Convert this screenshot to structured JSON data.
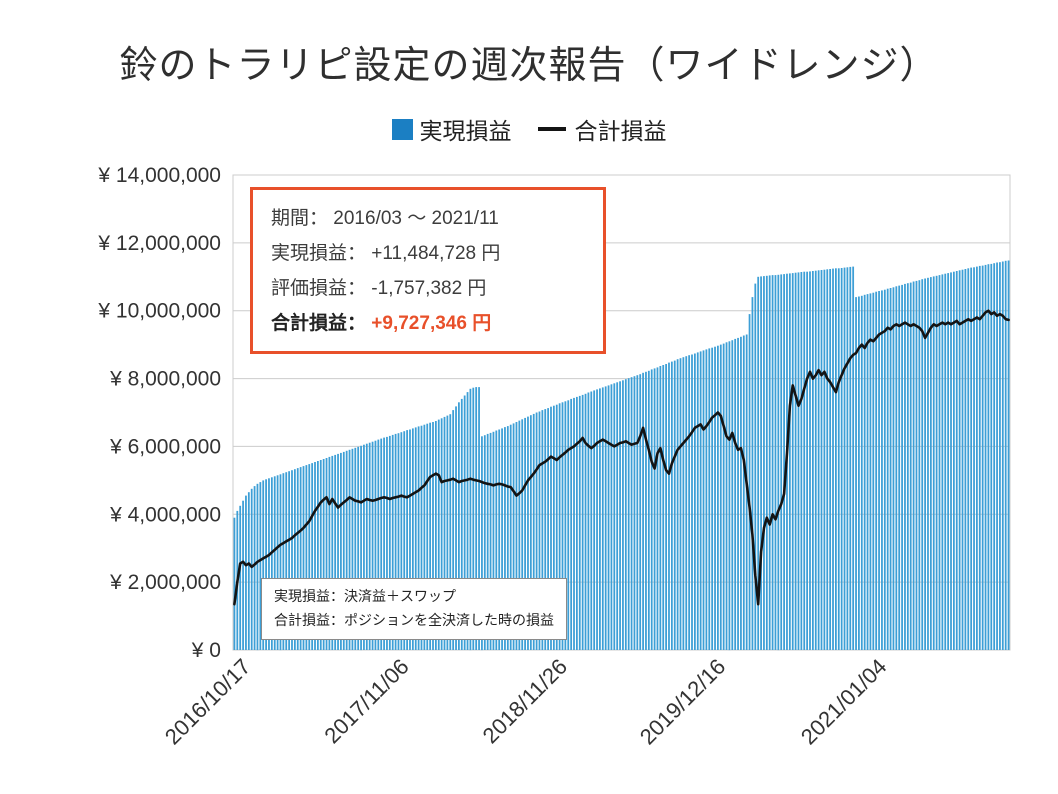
{
  "title": "鈴のトラリピ設定の週次報告（ワイドレンジ）",
  "legend": {
    "realized_label": "実現損益",
    "total_label": "合計損益"
  },
  "info_box": {
    "period_label": "期間：",
    "period_value": "2016/03 ～ 2021/11",
    "realized_label": "実現損益：",
    "realized_value": "+11,484,728 円",
    "valuation_label": "評価損益：",
    "valuation_value": "-1,757,382 円",
    "total_label": "合計損益：",
    "total_value": "+9,727,346 円"
  },
  "note_box": {
    "line1": "実現損益：決済益＋スワップ",
    "line2": "合計損益：ポジションを全決済した時の損益"
  },
  "colors": {
    "bar": "#3d9fd6",
    "legend_swatch": "#1b7fc3",
    "line": "#141414",
    "accent": "#e8502a",
    "grid": "#cccccc",
    "axis": "#aaaaaa",
    "text": "#333333"
  },
  "chart_data": {
    "type": "bar+line",
    "title": "鈴のトラリピ設定の週次報告（ワイドレンジ）",
    "unit": "million JPY",
    "x_unit": "weeks (2016/09 - 2021/11)",
    "ylim": [
      0,
      14
    ],
    "grid": true,
    "legend_position": "top",
    "y_tick_values": [
      14,
      12,
      10,
      8,
      6,
      4,
      2,
      0
    ],
    "y_tick_labels": [
      "¥ 14,000,000",
      "¥ 12,000,000",
      "¥ 10,000,000",
      "¥ 8,000,000",
      "¥ 6,000,000",
      "¥ 4,000,000",
      "¥ 2,000,000",
      "¥ 0"
    ],
    "x_tick_indices": [
      4,
      59,
      114,
      169,
      225
    ],
    "x_tick_labels": [
      "2016/10/17",
      "2017/11/06",
      "2018/11/26",
      "2019/12/16",
      "2021/01/04"
    ],
    "series": [
      {
        "name": "実現損益",
        "type": "bar",
        "values": [
          3.9,
          4.1,
          4.25,
          4.4,
          4.55,
          4.65,
          4.75,
          4.83,
          4.9,
          4.95,
          5.0,
          5.03,
          5.06,
          5.09,
          5.12,
          5.15,
          5.18,
          5.21,
          5.24,
          5.27,
          5.3,
          5.33,
          5.36,
          5.39,
          5.42,
          5.45,
          5.48,
          5.51,
          5.54,
          5.57,
          5.6,
          5.63,
          5.66,
          5.69,
          5.72,
          5.75,
          5.78,
          5.81,
          5.84,
          5.87,
          5.9,
          5.93,
          5.96,
          5.99,
          6.02,
          6.05,
          6.08,
          6.11,
          6.14,
          6.17,
          6.2,
          6.23,
          6.26,
          6.28,
          6.31,
          6.34,
          6.37,
          6.39,
          6.42,
          6.45,
          6.48,
          6.5,
          6.53,
          6.56,
          6.59,
          6.61,
          6.64,
          6.67,
          6.7,
          6.72,
          6.75,
          6.79,
          6.83,
          6.87,
          6.91,
          6.95,
          7.07,
          7.18,
          7.3,
          7.4,
          7.5,
          7.6,
          7.7,
          7.73,
          7.75,
          7.75,
          6.3,
          6.33,
          6.37,
          6.4,
          6.43,
          6.47,
          6.5,
          6.53,
          6.57,
          6.6,
          6.64,
          6.68,
          6.72,
          6.76,
          6.8,
          6.84,
          6.88,
          6.92,
          6.96,
          7.0,
          7.03,
          7.07,
          7.1,
          7.13,
          7.17,
          7.2,
          7.23,
          7.27,
          7.3,
          7.33,
          7.36,
          7.4,
          7.43,
          7.46,
          7.49,
          7.52,
          7.55,
          7.59,
          7.62,
          7.65,
          7.68,
          7.71,
          7.74,
          7.77,
          7.8,
          7.83,
          7.86,
          7.89,
          7.92,
          7.95,
          7.98,
          8.01,
          8.04,
          8.07,
          8.1,
          8.13,
          8.17,
          8.2,
          8.23,
          8.27,
          8.3,
          8.33,
          8.37,
          8.4,
          8.43,
          8.47,
          8.5,
          8.53,
          8.57,
          8.6,
          8.63,
          8.66,
          8.69,
          8.71,
          8.74,
          8.77,
          8.8,
          8.83,
          8.86,
          8.89,
          8.91,
          8.94,
          8.97,
          9.0,
          9.03,
          9.07,
          9.1,
          9.13,
          9.17,
          9.2,
          9.23,
          9.27,
          9.3,
          9.9,
          10.4,
          10.8,
          11.0,
          11.01,
          11.02,
          11.03,
          11.04,
          11.05,
          11.05,
          11.06,
          11.07,
          11.08,
          11.09,
          11.1,
          11.11,
          11.12,
          11.13,
          11.14,
          11.15,
          11.15,
          11.16,
          11.17,
          11.18,
          11.19,
          11.2,
          11.21,
          11.22,
          11.23,
          11.24,
          11.25,
          11.25,
          11.26,
          11.27,
          11.28,
          11.29,
          11.3,
          10.4,
          10.42,
          10.44,
          10.47,
          10.49,
          10.51,
          10.53,
          10.56,
          10.58,
          10.6,
          10.62,
          10.65,
          10.67,
          10.69,
          10.72,
          10.74,
          10.76,
          10.79,
          10.81,
          10.83,
          10.86,
          10.88,
          10.9,
          10.93,
          10.95,
          10.97,
          10.99,
          11.01,
          11.03,
          11.05,
          11.07,
          11.09,
          11.11,
          11.13,
          11.15,
          11.17,
          11.19,
          11.21,
          11.23,
          11.25,
          11.27,
          11.28,
          11.3,
          11.32,
          11.33,
          11.35,
          11.37,
          11.38,
          11.4,
          11.42,
          11.43,
          11.45,
          11.47,
          11.48
        ]
      },
      {
        "name": "合計損益",
        "type": "line",
        "values": [
          1.35,
          2.0,
          2.55,
          2.6,
          2.5,
          2.55,
          2.45,
          2.52,
          2.6,
          2.65,
          2.7,
          2.75,
          2.8,
          2.88,
          2.95,
          3.03,
          3.1,
          3.15,
          3.2,
          3.25,
          3.3,
          3.38,
          3.45,
          3.52,
          3.6,
          3.7,
          3.8,
          3.95,
          4.1,
          4.22,
          4.35,
          4.43,
          4.5,
          4.3,
          4.45,
          4.32,
          4.2,
          4.28,
          4.35,
          4.42,
          4.5,
          4.45,
          4.4,
          4.38,
          4.35,
          4.4,
          4.45,
          4.42,
          4.4,
          4.42,
          4.45,
          4.48,
          4.5,
          4.48,
          4.45,
          4.48,
          4.5,
          4.52,
          4.55,
          4.52,
          4.5,
          4.55,
          4.6,
          4.65,
          4.7,
          4.78,
          4.85,
          4.98,
          5.1,
          5.15,
          5.2,
          5.15,
          4.95,
          4.98,
          5.0,
          5.02,
          5.05,
          5.0,
          4.95,
          4.98,
          5.0,
          5.02,
          5.05,
          5.02,
          5.0,
          4.98,
          4.95,
          4.92,
          4.9,
          4.88,
          4.85,
          4.88,
          4.9,
          4.88,
          4.85,
          4.82,
          4.8,
          4.68,
          4.55,
          4.62,
          4.7,
          4.85,
          5.0,
          5.1,
          5.2,
          5.32,
          5.45,
          5.5,
          5.55,
          5.62,
          5.7,
          5.65,
          5.6,
          5.68,
          5.75,
          5.82,
          5.9,
          5.95,
          6.0,
          6.08,
          6.15,
          6.25,
          6.1,
          6.02,
          5.95,
          6.02,
          6.1,
          6.15,
          6.2,
          6.15,
          6.1,
          6.05,
          6.0,
          6.05,
          6.1,
          6.12,
          6.15,
          6.1,
          6.05,
          6.08,
          6.1,
          6.3,
          6.55,
          6.2,
          5.9,
          5.55,
          5.35,
          5.8,
          5.95,
          5.6,
          5.3,
          5.2,
          5.5,
          5.7,
          5.9,
          6.0,
          6.1,
          6.2,
          6.3,
          6.42,
          6.55,
          6.6,
          6.65,
          6.5,
          6.6,
          6.72,
          6.85,
          6.92,
          7.0,
          6.9,
          6.6,
          6.3,
          6.2,
          6.4,
          6.1,
          5.9,
          5.95,
          5.6,
          4.9,
          4.2,
          3.4,
          2.2,
          1.35,
          2.9,
          3.6,
          3.9,
          3.7,
          4.0,
          3.85,
          4.1,
          4.3,
          4.6,
          5.8,
          7.2,
          7.8,
          7.5,
          7.2,
          7.4,
          7.7,
          8.0,
          8.2,
          8.0,
          8.1,
          8.25,
          8.1,
          8.2,
          8.0,
          7.9,
          7.75,
          7.6,
          7.9,
          8.1,
          8.3,
          8.45,
          8.6,
          8.7,
          8.75,
          8.9,
          9.0,
          8.9,
          9.05,
          9.15,
          9.1,
          9.2,
          9.3,
          9.35,
          9.4,
          9.5,
          9.45,
          9.55,
          9.6,
          9.55,
          9.6,
          9.65,
          9.6,
          9.55,
          9.6,
          9.55,
          9.5,
          9.4,
          9.2,
          9.35,
          9.5,
          9.6,
          9.55,
          9.6,
          9.65,
          9.6,
          9.65,
          9.6,
          9.65,
          9.7,
          9.6,
          9.65,
          9.7,
          9.75,
          9.7,
          9.75,
          9.8,
          9.75,
          9.85,
          9.95,
          10.0,
          9.9,
          9.95,
          9.85,
          9.9,
          9.85,
          9.75,
          9.73
        ]
      }
    ]
  }
}
